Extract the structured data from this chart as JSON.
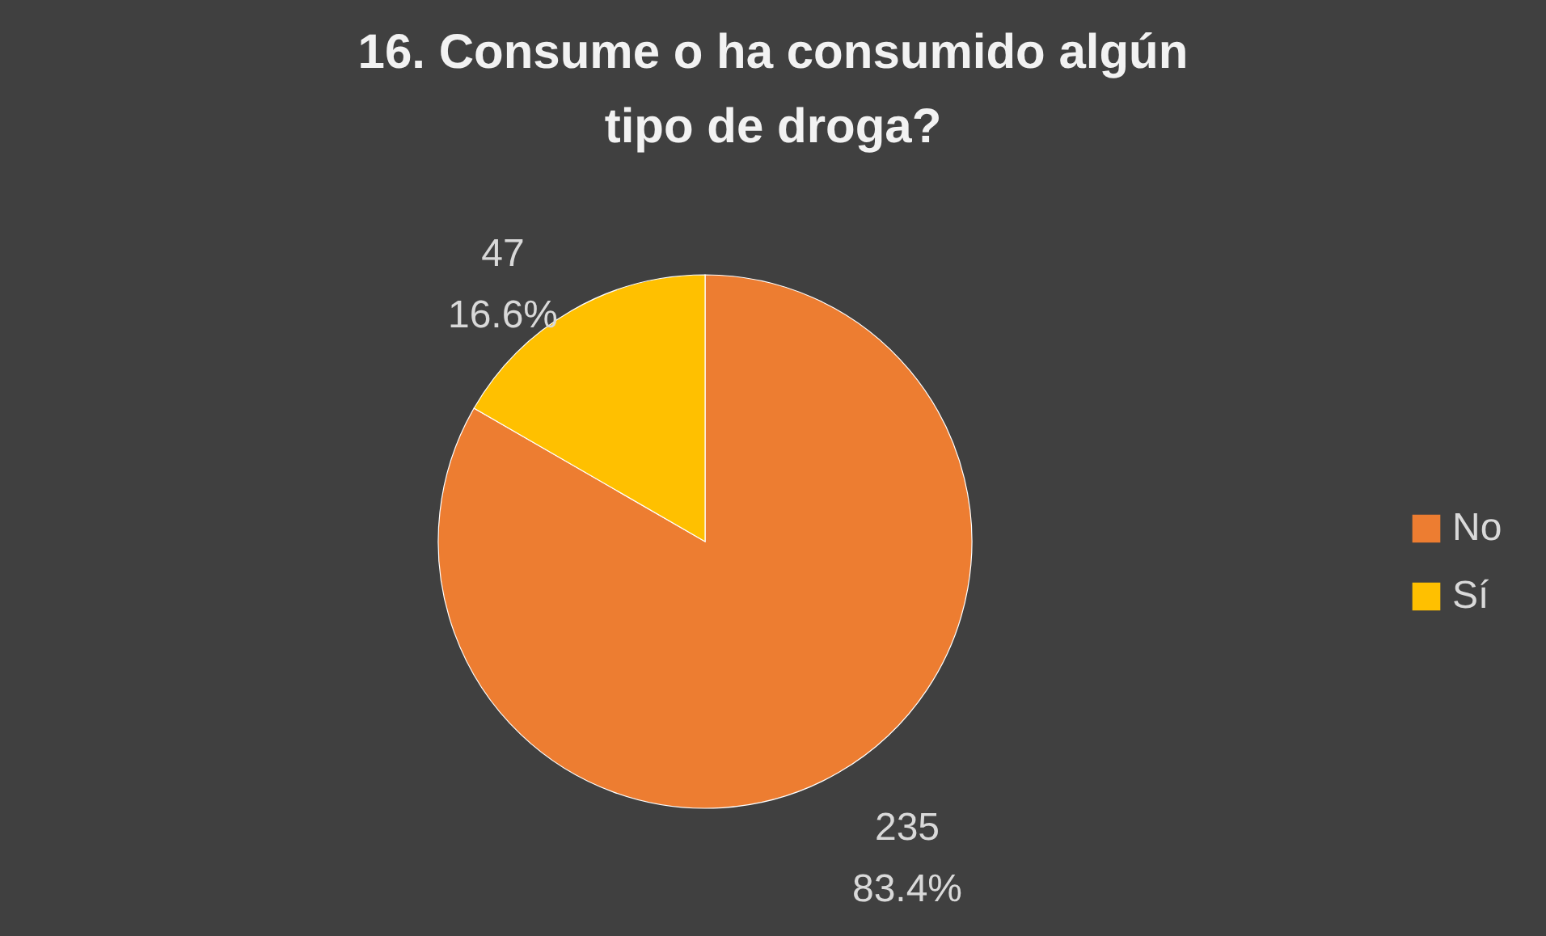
{
  "chart_data": {
    "type": "pie",
    "title": "16. Consume o ha consumido algún tipo de droga?",
    "categories": [
      "No",
      "Sí"
    ],
    "values": [
      235,
      47
    ],
    "colors": [
      "#ed7d31",
      "#ffc000"
    ],
    "value_labels": [
      "235\n83.4%",
      "47\n16.6%"
    ],
    "legend": "right"
  }
}
